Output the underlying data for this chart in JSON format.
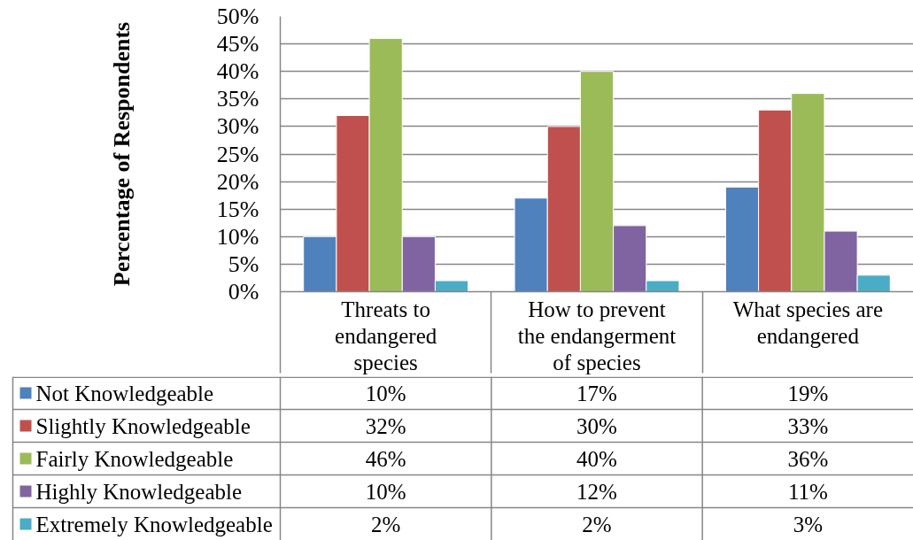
{
  "chart_data": {
    "type": "bar",
    "ylabel": "Percentage of Respondents",
    "categories": [
      "Threats to endangered species",
      "How to prevent the endangerment of species",
      "What species are endangered"
    ],
    "series": [
      {
        "name": "Not Knowledgeable",
        "color": "#4f81bd",
        "values": [
          10,
          17,
          19
        ],
        "value_labels": [
          "10%",
          "17%",
          "19%"
        ]
      },
      {
        "name": "Slightly Knowledgeable",
        "color": "#c0504d",
        "values": [
          32,
          30,
          33
        ],
        "value_labels": [
          "32%",
          "30%",
          "33%"
        ]
      },
      {
        "name": "Fairly Knowledgeable",
        "color": "#9bbb59",
        "values": [
          46,
          40,
          36
        ],
        "value_labels": [
          "46%",
          "40%",
          "36%"
        ]
      },
      {
        "name": "Highly Knowledgeable",
        "color": "#8064a2",
        "values": [
          10,
          12,
          11
        ],
        "value_labels": [
          "10%",
          "12%",
          "11%"
        ]
      },
      {
        "name": "Extremely Knowledgeable",
        "color": "#4bacc6",
        "values": [
          2,
          2,
          3
        ],
        "value_labels": [
          "2%",
          "2%",
          "3%"
        ]
      }
    ],
    "ylim": [
      0,
      50
    ],
    "yticks": [
      {
        "value": 0,
        "label": "0%"
      },
      {
        "value": 5,
        "label": "5%"
      },
      {
        "value": 10,
        "label": "10%"
      },
      {
        "value": 15,
        "label": "15%"
      },
      {
        "value": 20,
        "label": "20%"
      },
      {
        "value": 25,
        "label": "25%"
      },
      {
        "value": 30,
        "label": "30%"
      },
      {
        "value": 35,
        "label": "35%"
      },
      {
        "value": 40,
        "label": "40%"
      },
      {
        "value": 45,
        "label": "45%"
      },
      {
        "value": 50,
        "label": "50%"
      }
    ],
    "grid": "y",
    "legend": "bottom"
  }
}
